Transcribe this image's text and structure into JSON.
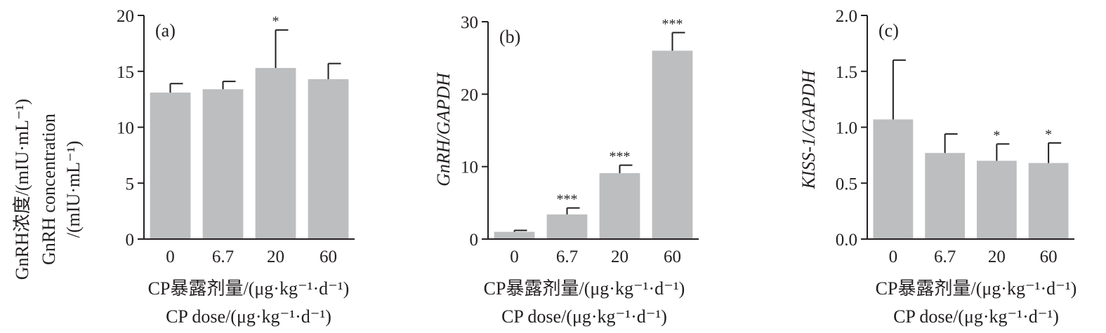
{
  "chart_data": [
    {
      "type": "bar",
      "panel_label": "(a)",
      "categories": [
        "0",
        "6.7",
        "20",
        "60"
      ],
      "values": [
        13.1,
        13.4,
        15.3,
        14.3
      ],
      "errors": [
        0.8,
        0.7,
        3.4,
        1.4
      ],
      "significance": [
        "",
        "",
        "*",
        ""
      ],
      "ylim": [
        0,
        20
      ],
      "yticks": [
        "0",
        "5",
        "10",
        "15",
        "20"
      ],
      "ylabel_lines": [
        "GnRH浓度/(mIU·mL⁻¹)",
        "GnRH concentration",
        "/(mIU·mL⁻¹)"
      ],
      "xlabel_lines": [
        "CP暴露剂量/(μg·kg⁻¹·d⁻¹)",
        "CP dose/(μg·kg⁻¹·d⁻¹)"
      ],
      "bar_color": "#bcbec0"
    },
    {
      "type": "bar",
      "panel_label": "(b)",
      "categories": [
        "0",
        "6.7",
        "20",
        "60"
      ],
      "values": [
        1.0,
        3.4,
        9.1,
        26.0
      ],
      "errors": [
        0.2,
        0.9,
        1.1,
        2.5
      ],
      "significance": [
        "",
        "***",
        "***",
        "***"
      ],
      "ylim": [
        0,
        30
      ],
      "yticks": [
        "0",
        "10",
        "20",
        "30"
      ],
      "ylabel_lines": [
        "GnRH/GAPDH"
      ],
      "ylabel_italic": true,
      "xlabel_lines": [
        "CP暴露剂量/(μg·kg⁻¹·d⁻¹)",
        "CP dose/(μg·kg⁻¹·d⁻¹)"
      ],
      "bar_color": "#bcbec0"
    },
    {
      "type": "bar",
      "panel_label": "(c)",
      "categories": [
        "0",
        "6.7",
        "20",
        "60"
      ],
      "values": [
        1.07,
        0.77,
        0.7,
        0.68
      ],
      "errors": [
        0.53,
        0.17,
        0.15,
        0.18
      ],
      "significance": [
        "",
        "",
        "*",
        "*"
      ],
      "ylim": [
        0,
        2.0
      ],
      "yticks": [
        "0.0",
        "0.5",
        "1.0",
        "1.5",
        "2.0"
      ],
      "ylabel_lines": [
        "KISS-1/GAPDH"
      ],
      "ylabel_italic": true,
      "xlabel_lines": [
        "CP暴露剂量/(μg·kg⁻¹·d⁻¹)",
        "CP dose/(μg·kg⁻¹·d⁻¹)"
      ],
      "bar_color": "#bcbec0"
    }
  ]
}
